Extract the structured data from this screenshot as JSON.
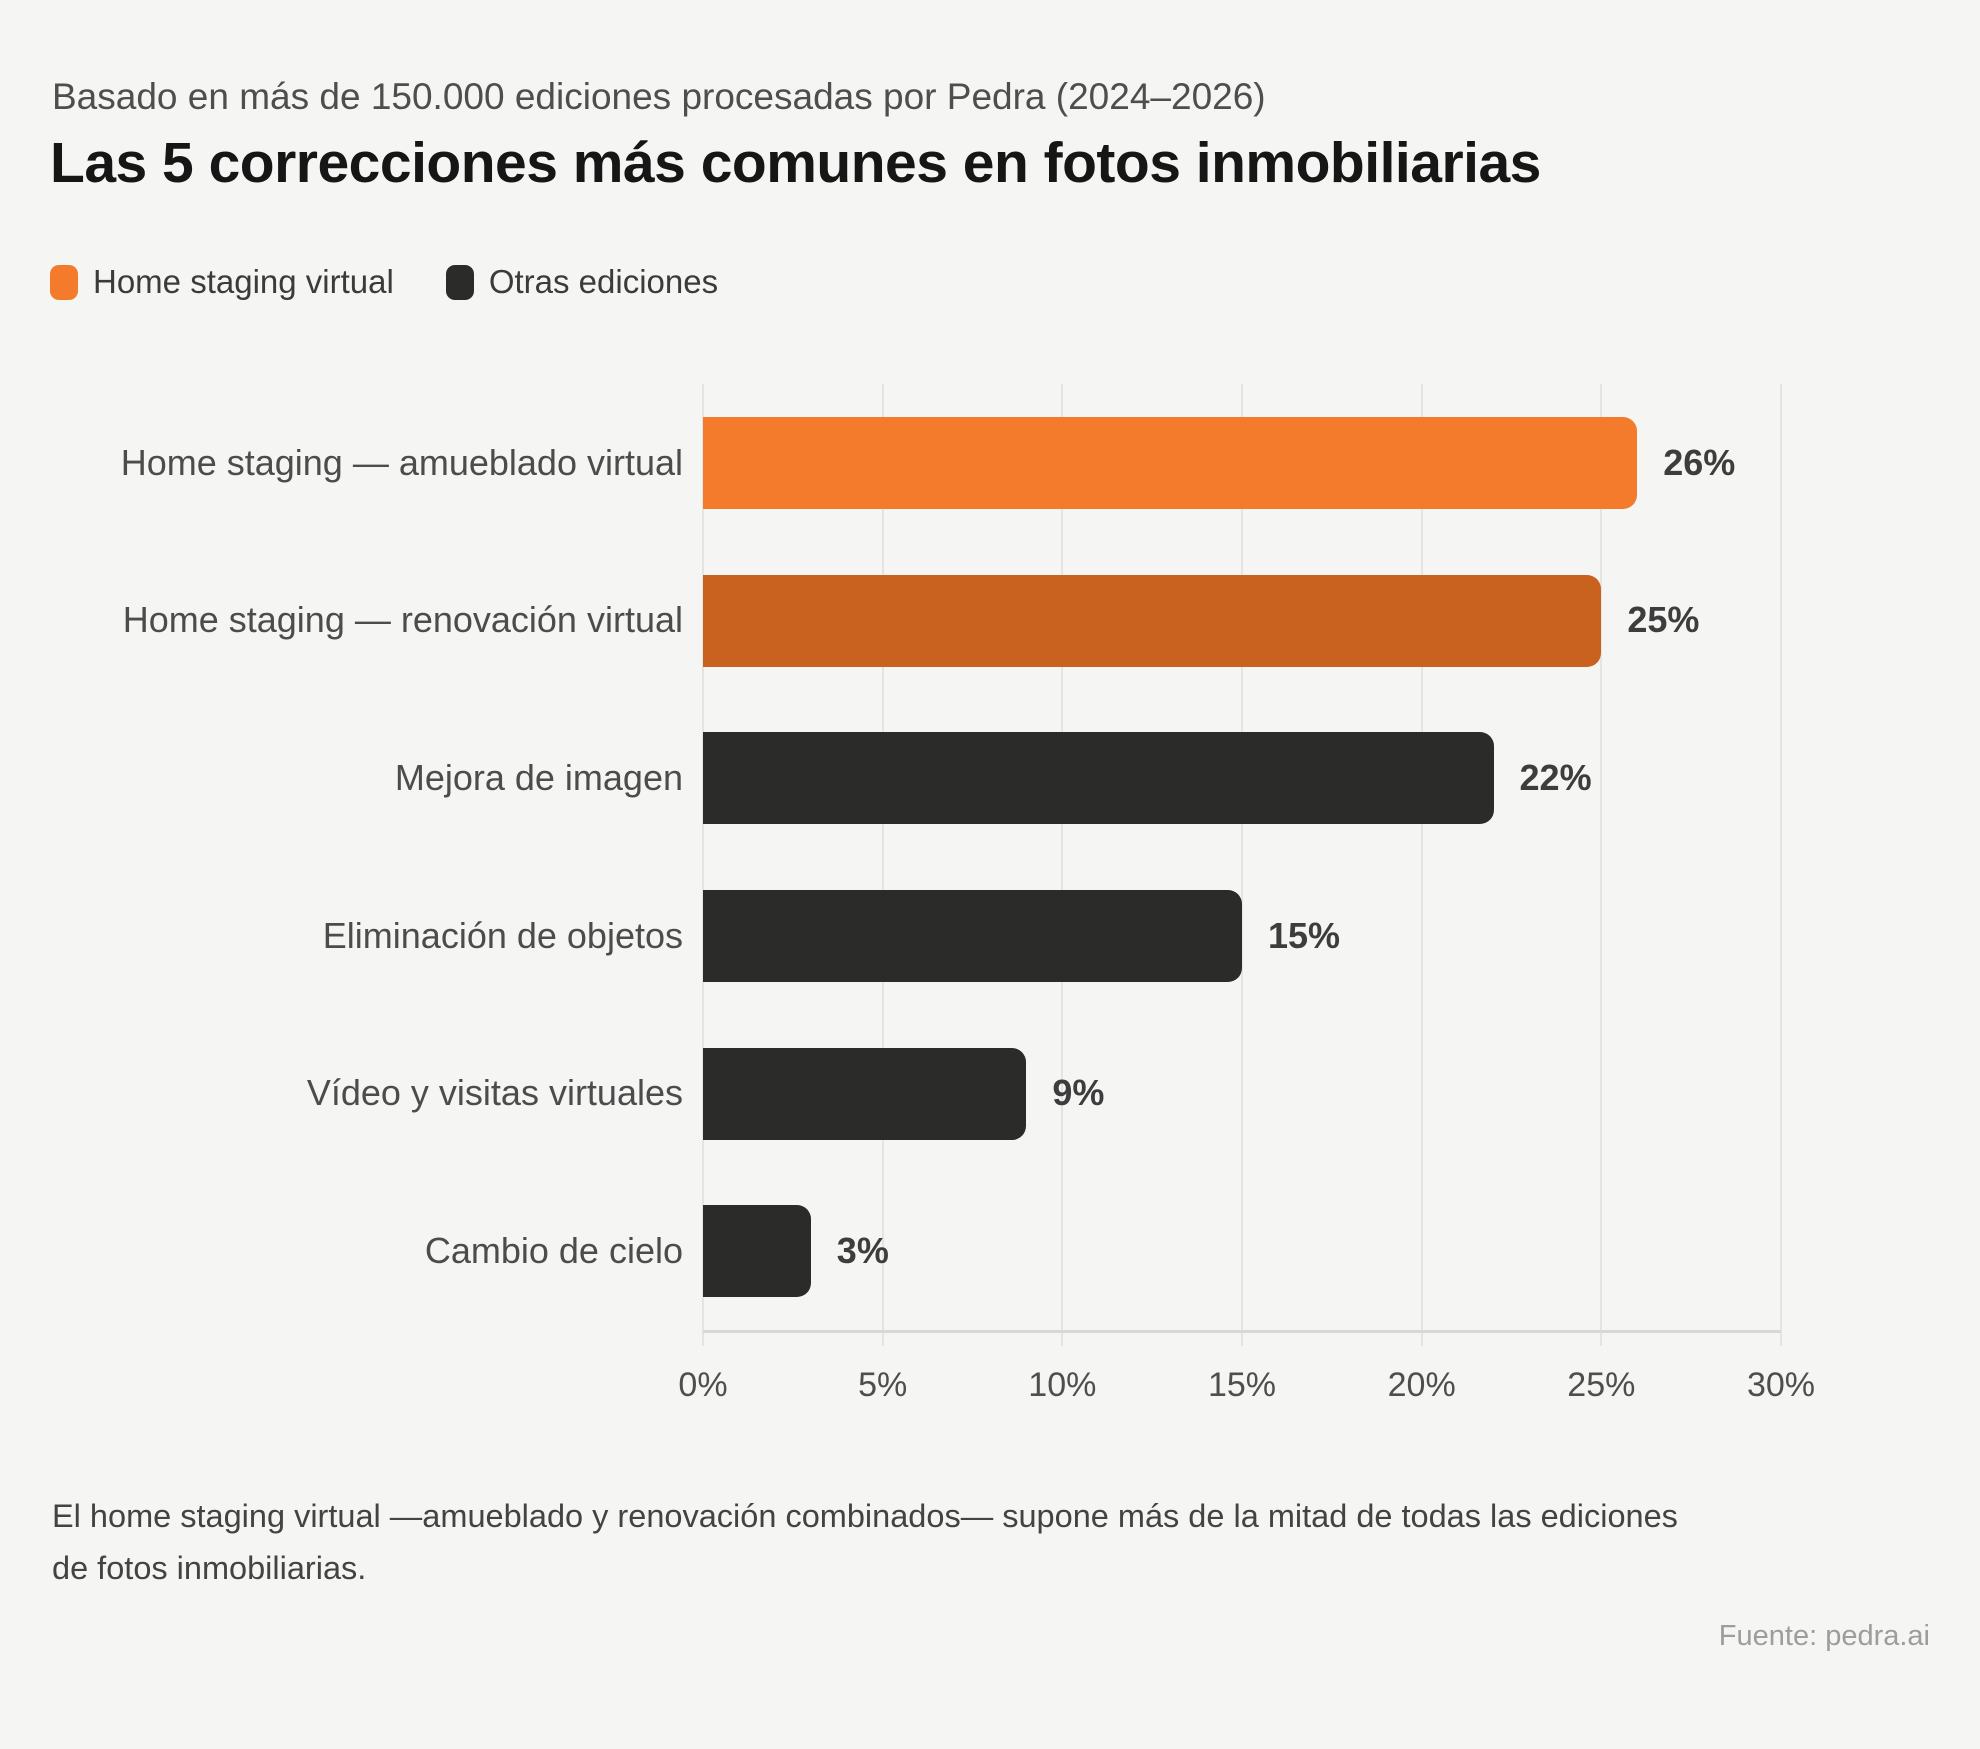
{
  "header": {
    "subtitle": "Basado en más de 150.000 ediciones procesadas por Pedra (2024–2026)",
    "title": "Las 5 correcciones más comunes en fotos inmobiliarias"
  },
  "legend": {
    "items": [
      {
        "label": "Home staging virtual",
        "color_key": "orange"
      },
      {
        "label": "Otras ediciones",
        "color_key": "dark"
      }
    ]
  },
  "palette": {
    "orange": "#f57b2c",
    "orange_dark": "#c9621f",
    "dark": "#2b2b2a",
    "background": "#f5f5f3",
    "gridline": "#e4e4e2",
    "axis_line": "#d8d8d6"
  },
  "chart_data": {
    "type": "bar",
    "orientation": "horizontal",
    "title": "Las 5 correcciones más comunes en fotos inmobiliarias",
    "categories": [
      "Home staging — amueblado virtual",
      "Home staging — renovación virtual",
      "Mejora de imagen",
      "Eliminación de objetos",
      "Vídeo y visitas virtuales",
      "Cambio de cielo"
    ],
    "values": [
      26,
      25,
      22,
      15,
      9,
      3
    ],
    "value_labels": [
      "26%",
      "25%",
      "22%",
      "15%",
      "9%",
      "3%"
    ],
    "bar_color_keys": [
      "orange",
      "orange_dark",
      "dark",
      "dark",
      "dark",
      "dark"
    ],
    "series_legend": [
      "Home staging virtual",
      "Otras ediciones"
    ],
    "xlim": [
      0,
      30
    ],
    "x_ticks": [
      "0%",
      "5%",
      "10%",
      "15%",
      "20%",
      "25%",
      "30%"
    ],
    "x_tick_values": [
      0,
      5,
      10,
      15,
      20,
      25,
      30
    ],
    "grid": "vertical"
  },
  "footer": {
    "note": "El home staging virtual —amueblado y renovación combinados— supone más de la mitad de todas las ediciones de fotos inmobiliarias.",
    "source": "Fuente: pedra.ai"
  }
}
